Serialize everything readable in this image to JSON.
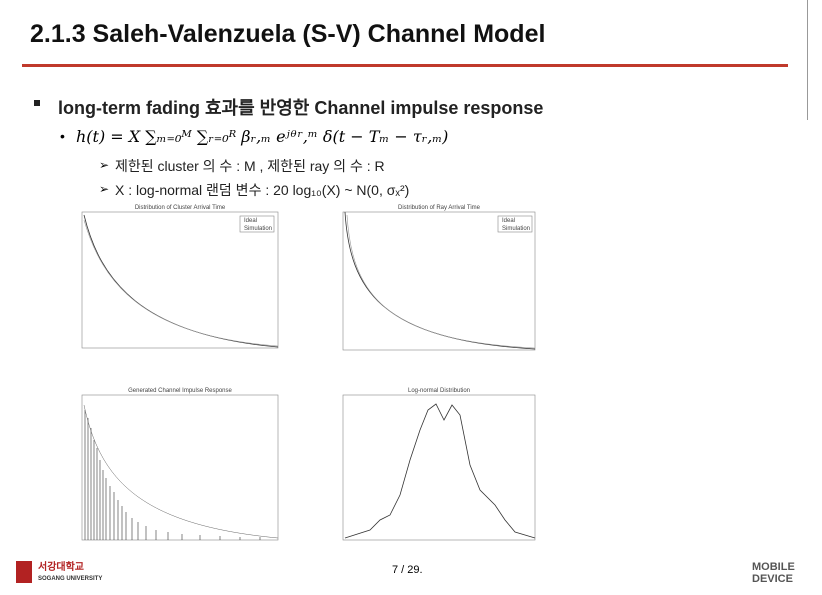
{
  "header": {
    "title": "2.1.3 Saleh-Valenzuela (S-V) Channel Model"
  },
  "body": {
    "bullet": "long-term fading 효과를 반영한 Channel impulse response",
    "formula": "h(t) = X ∑ₘ₌₀ᴹ ∑ᵣ₌₀ᴿ βᵣ,ₘ eʲᶿʳ,ᵐ δ(t − Tₘ − τᵣ,ₘ)",
    "sub_items": [
      "제한된 cluster 의 수 : M , 제한된 ray 의 수 : R",
      "X : log-normal 랜덤 변수 : 20 log₁₀(X) ~ N(0, σₓ²)"
    ]
  },
  "figures": [
    {
      "title": "Distribution of Cluster Arrival Time",
      "legend": [
        "Ideal",
        "Simulation"
      ]
    },
    {
      "title": "Distribution of Ray Arrival Time",
      "legend": [
        "Ideal",
        "Simulation"
      ]
    },
    {
      "title": "Generated Channel Impulse Response"
    },
    {
      "title": "Log-normal Distribution"
    }
  ],
  "footer": {
    "page": "7 / 29.",
    "logo_left_kr": "서강대학교",
    "logo_left_en": "SOGANG UNIVERSITY",
    "logo_right_1": "MOBILE",
    "logo_right_2": "DEVICE"
  }
}
